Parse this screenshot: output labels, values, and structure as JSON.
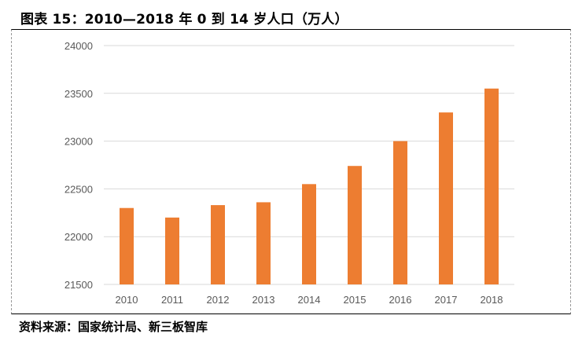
{
  "chart_data": {
    "type": "bar",
    "title": "图表 15：2010—2018 年 0 到 14 岁人口（万人）",
    "source": "资料来源：国家统计局、新三板智库",
    "categories": [
      "2010",
      "2011",
      "2012",
      "2013",
      "2014",
      "2015",
      "2016",
      "2017",
      "2018"
    ],
    "values": [
      22300,
      22200,
      22330,
      22360,
      22550,
      22740,
      23000,
      23300,
      23550
    ],
    "ylim": [
      21500,
      24000
    ],
    "yticks": [
      "21500",
      "22000",
      "22500",
      "23000",
      "23500",
      "24000"
    ],
    "xlabel": "",
    "ylabel": "",
    "grid": true,
    "legend": "none",
    "bar_color": "#ED7D31",
    "grid_color": "#D9D9D9"
  }
}
